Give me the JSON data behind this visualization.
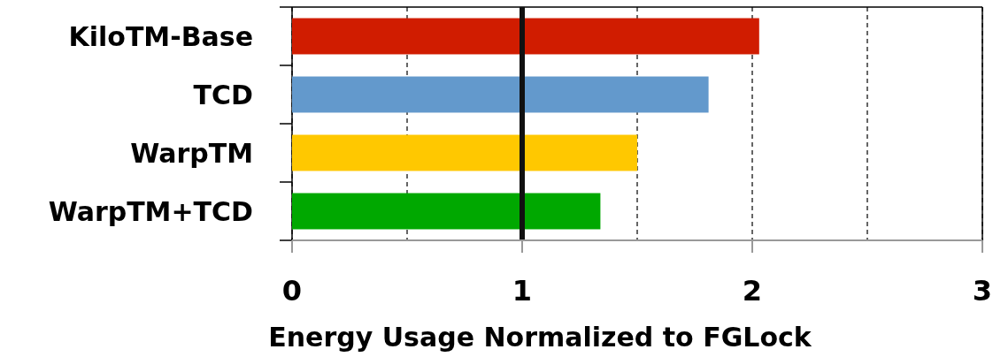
{
  "chart_data": {
    "type": "bar",
    "orientation": "horizontal",
    "xlabel": "Energy Usage Normalized to FGLock",
    "categories": [
      "KiloTM-Base",
      "TCD",
      "WarpTM",
      "WarpTM+TCD"
    ],
    "values": [
      2.03,
      1.81,
      1.5,
      1.34
    ],
    "colors": [
      "#d01c00",
      "#6399cc",
      "#ffc800",
      "#00a800"
    ],
    "xlim": [
      0,
      3
    ],
    "xticks": [
      0,
      {
        "value": 0.5,
        "label": null
      },
      1,
      {
        "value": 1.5,
        "label": null
      },
      2,
      {
        "value": 2.5,
        "label": null
      },
      3
    ],
    "grid": "x",
    "ref_lines": [
      {
        "axis": "x",
        "value": 1,
        "color": "#111111"
      }
    ]
  }
}
